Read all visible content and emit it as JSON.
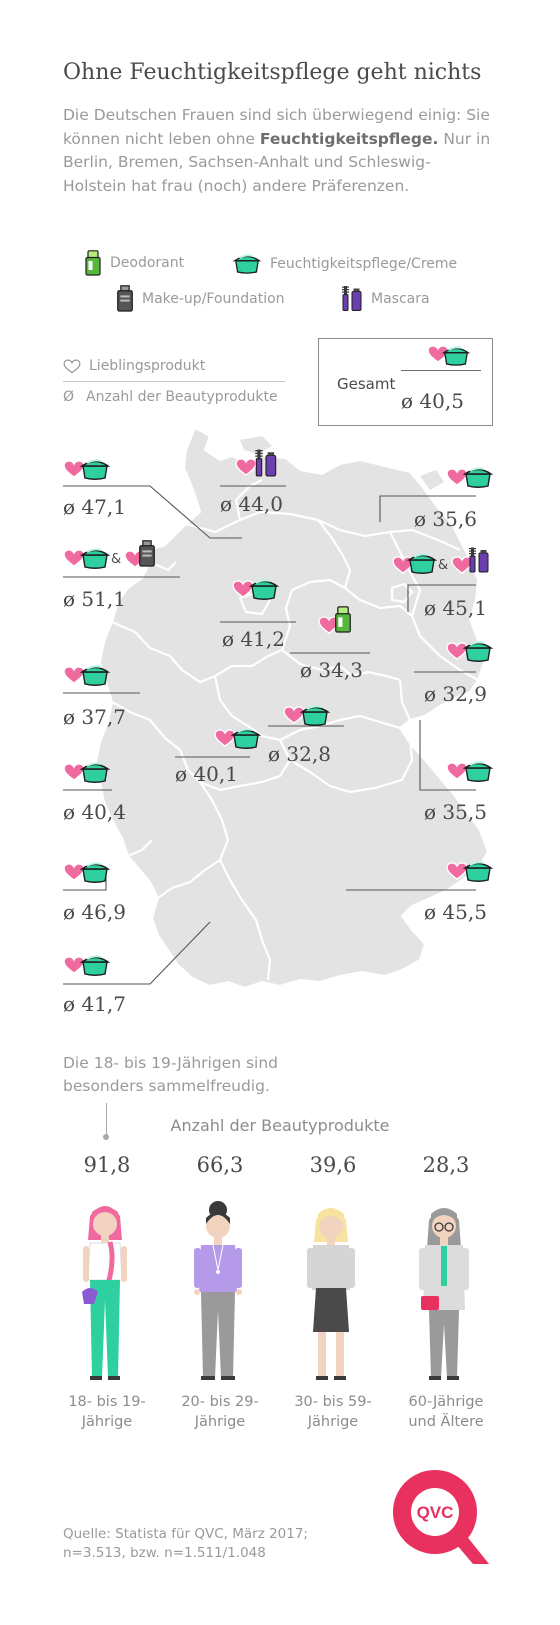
{
  "header": {
    "title": "Ohne Feuchtigkeitspflege geht nichts",
    "intro_part1": "Die Deutschen Frauen sind sich überwiegend einig: Sie können nicht leben ohne ",
    "intro_bold": "Feuchtigkeits­pflege.",
    "intro_part2": " Nur in Berlin, Bremen, Sachsen-Anhalt und Schleswig-Holstein hat frau (noch) andere Präferenzen."
  },
  "legend": {
    "deodorant": "Deodorant",
    "cream": "Feuchtigkeitspflege/Creme",
    "makeup": "Make-up/Foundation",
    "mascara": "Mascara",
    "favorite": "Lieblingsprodukt",
    "avg_symbol": "Ø",
    "avg": "Anzahl der Beautyprodukte"
  },
  "gesamt": {
    "label": "Gesamt",
    "value": "ø 40,5"
  },
  "states": {
    "sh": "ø 44,0",
    "hamburg": "ø 47,1",
    "bremen": "ø 51,1",
    "mv": "ø 35,6",
    "berlin": "ø 45,1",
    "niedersachsen": "ø 41,2",
    "sachsen_anhalt": "ø 34,3",
    "brandenburg": "ø 32,9",
    "nrw": "ø 37,7",
    "hessen": "ø 40,1",
    "thueringen": "ø 32,8",
    "sachsen": "ø 35,5",
    "rlp": "ø 40,4",
    "saarland": "ø 46,9",
    "bayern": "ø 45,5",
    "bw": "ø 41,7",
    "amp": "&"
  },
  "ages": {
    "intro": "Die 18- bis 19-Jährigen sind besonders sammelfreudig.",
    "heading": "Anzahl der Beautyprodukte",
    "groups": [
      {
        "value": "91,8",
        "label_line1": "18- bis 19-",
        "label_line2": "Jährige"
      },
      {
        "value": "66,3",
        "label_line1": "20- bis 29-",
        "label_line2": "Jährige"
      },
      {
        "value": "39,6",
        "label_line1": "30- bis 59-",
        "label_line2": "Jährige"
      },
      {
        "value": "28,3",
        "label_line1": "60-Jährige",
        "label_line2": "und Ältere"
      }
    ]
  },
  "source": {
    "line1": "Quelle: Statista für QVC, März 2017;",
    "line2": "n=3.513, bzw. n=1.511/1.048"
  },
  "logo": {
    "text": "QVC"
  },
  "colors": {
    "heart": "#f06aa0",
    "cream": "#2fd0a0",
    "deodorant": "#55b83a",
    "mascara": "#6b3fb0",
    "makeup": "#555555",
    "map": "#e3e3e3",
    "logo": "#e8315f"
  }
}
